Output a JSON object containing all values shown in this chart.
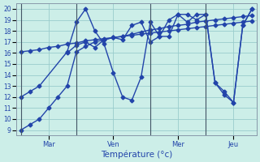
{
  "title": "Température (°c)",
  "background_color": "#cceee8",
  "grid_color": "#99cccc",
  "line_color": "#2244aa",
  "day_labels": [
    "Mar",
    "Ven",
    "Mer",
    "Jeu"
  ],
  "day_positions": [
    0,
    6,
    14,
    20
  ],
  "xtick_offsets": [
    3,
    10,
    17,
    23
  ],
  "xlim": [
    -0.5,
    25.5
  ],
  "ylim": [
    8.5,
    20.5
  ],
  "yticks": [
    9,
    10,
    11,
    12,
    13,
    14,
    15,
    16,
    17,
    18,
    19,
    20
  ],
  "series": [
    {
      "x": [
        0,
        1,
        2,
        3,
        4,
        5,
        6,
        7,
        8,
        9,
        10,
        11,
        12,
        13,
        14,
        15,
        16,
        17,
        18,
        19,
        20,
        21,
        22,
        23,
        24,
        25
      ],
      "y": [
        9,
        9.5,
        10,
        11,
        12,
        13,
        16.1,
        16.6,
        17.0,
        17.2,
        17.4,
        17.5,
        17.7,
        17.9,
        18.1,
        18.2,
        18.4,
        18.5,
        18.6,
        18.8,
        18.9,
        19.0,
        19.1,
        19.2,
        19.3,
        19.4
      ],
      "marker": "D",
      "markersize": 2.5,
      "linewidth": 1.0
    },
    {
      "x": [
        0,
        1,
        2,
        3,
        4,
        5,
        6,
        7,
        8,
        9,
        10,
        11,
        12,
        13,
        14,
        15,
        16,
        17,
        18,
        19,
        20,
        21,
        22,
        23,
        24,
        25
      ],
      "y": [
        16.1,
        16.2,
        16.3,
        16.5,
        16.6,
        16.8,
        16.9,
        17.1,
        17.2,
        17.3,
        17.4,
        17.5,
        17.6,
        17.7,
        17.8,
        17.9,
        18.0,
        18.1,
        18.2,
        18.3,
        18.4,
        18.5,
        18.6,
        18.7,
        18.8,
        18.9
      ],
      "marker": "D",
      "markersize": 2.5,
      "linewidth": 1.0
    },
    {
      "x": [
        0,
        1,
        2,
        5,
        6,
        7,
        8,
        9,
        10,
        11,
        12,
        13,
        14,
        15,
        16,
        17,
        18,
        19,
        20,
        21,
        22,
        23,
        24,
        25
      ],
      "y": [
        12,
        12.5,
        13,
        16.1,
        18.8,
        20,
        18,
        16.8,
        14.2,
        12.0,
        11.7,
        13.8,
        18.8,
        17.5,
        17.5,
        19.5,
        18.8,
        19.5,
        19.5,
        13.3,
        12.5,
        11.5,
        18.5,
        20
      ],
      "marker": "D",
      "markersize": 2.5,
      "linewidth": 1.0
    },
    {
      "x": [
        5,
        6,
        7,
        8,
        9,
        10,
        11,
        12,
        13,
        14,
        15,
        16,
        17,
        18,
        19,
        20,
        21,
        22,
        23,
        24,
        25
      ],
      "y": [
        16.0,
        16.7,
        17.0,
        16.5,
        17.2,
        17.4,
        17.2,
        18.5,
        18.8,
        17.0,
        17.5,
        19.0,
        19.5,
        19.5,
        19.0,
        19.5,
        13.3,
        12.2,
        11.5,
        18.5,
        20
      ],
      "marker": "D",
      "markersize": 2.5,
      "linewidth": 1.0
    }
  ]
}
